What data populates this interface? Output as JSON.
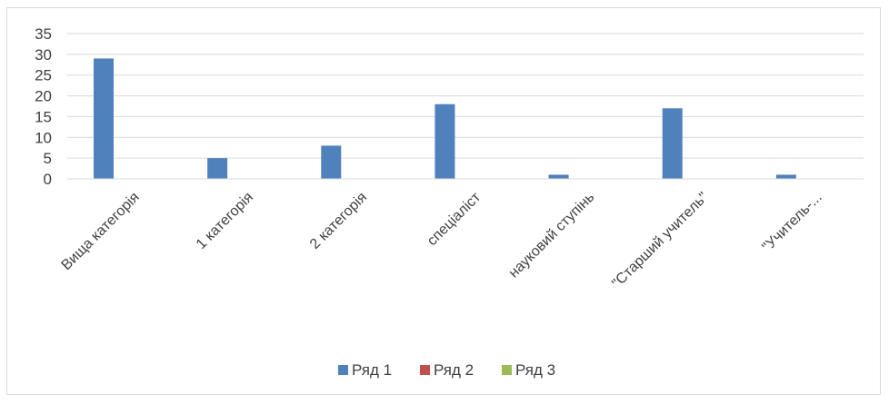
{
  "chart_data": {
    "type": "bar",
    "categories": [
      "Вища категорія",
      "1 категорія",
      "2 категорія",
      "спеціаліст",
      "науковий ступінь",
      "\"Старший учитель\"",
      "\"Учитель-..."
    ],
    "series": [
      {
        "name": "Ряд 1",
        "color": "#4f81bd",
        "values": [
          29,
          5,
          8,
          18,
          1,
          17,
          1
        ]
      },
      {
        "name": "Ряд 2",
        "color": "#c0504d",
        "values": [
          0,
          0,
          0,
          0,
          0,
          0,
          0
        ]
      },
      {
        "name": "Ряд 3",
        "color": "#9bbb59",
        "values": [
          0,
          0,
          0,
          0,
          0,
          0,
          0
        ]
      }
    ],
    "y_ticks": [
      "0",
      "5",
      "10",
      "15",
      "20",
      "25",
      "30",
      "35"
    ],
    "ylim": [
      0,
      35
    ],
    "grid": true,
    "legend_position": "bottom"
  }
}
